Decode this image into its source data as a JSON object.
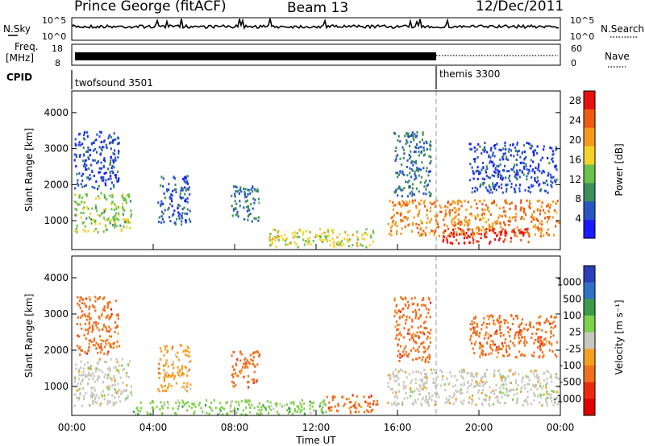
{
  "header": {
    "station": "Prince George (fitACF)",
    "beam": "Beam 13",
    "date": "12/Dec/2011"
  },
  "status_panels": {
    "nsky_label": "N.Sky",
    "nsky_ticks": [
      "10^5",
      "10^0"
    ],
    "nsearch_label": "N.Search",
    "nsearch_ticks": [
      "10^5",
      "10^0"
    ],
    "freq_label_1": "Freq.",
    "freq_label_2": "[MHz]",
    "freq_ticks": [
      "18",
      "8"
    ],
    "nave_label": "Nave",
    "nave_ticks": [
      "60",
      "0"
    ],
    "cpid_label": "CPID",
    "cpid_modes": [
      {
        "name": "twofsound 3501",
        "start": 0,
        "end": 18
      },
      {
        "name": "themis 3300",
        "start": 18,
        "end": 24
      }
    ]
  },
  "chart_data": [
    {
      "type": "heatmap",
      "panel": "power",
      "ylabel": "Slant Range [km]",
      "xlabel": "",
      "xlim": [
        0,
        24
      ],
      "ylim": [
        200,
        4600
      ],
      "yticks": [
        "1000",
        "2000",
        "3000",
        "4000"
      ],
      "colorbar": {
        "label": "Power [dB]",
        "ticks": [
          "4",
          "8",
          "12",
          "16",
          "20",
          "24",
          "28"
        ],
        "range": [
          0,
          30
        ],
        "colors": [
          "#1a1aff",
          "#2a56c4",
          "#3d8f5e",
          "#6cc24a",
          "#f5d22a",
          "#f59a1a",
          "#f05a10",
          "#e81010"
        ]
      },
      "echo_regions": [
        {
          "t0": 0.1,
          "t1": 2.9,
          "r0": 700,
          "r1": 1800,
          "level": 14
        },
        {
          "t0": 0.1,
          "t1": 2.3,
          "r0": 1900,
          "r1": 3500,
          "level": 5
        },
        {
          "t0": 4.2,
          "t1": 5.8,
          "r0": 900,
          "r1": 2300,
          "level": 6
        },
        {
          "t0": 7.8,
          "t1": 9.2,
          "r0": 1000,
          "r1": 2000,
          "level": 8
        },
        {
          "t0": 9.5,
          "t1": 14.8,
          "r0": 300,
          "r1": 800,
          "level": 16
        },
        {
          "t0": 15.5,
          "t1": 23.9,
          "r0": 600,
          "r1": 1600,
          "level": 22
        },
        {
          "t0": 18.2,
          "t1": 22.4,
          "r0": 400,
          "r1": 800,
          "level": 28
        },
        {
          "t0": 15.8,
          "t1": 17.6,
          "r0": 1700,
          "r1": 3500,
          "level": 7
        },
        {
          "t0": 19.5,
          "t1": 23.8,
          "r0": 1800,
          "r1": 3200,
          "level": 5
        }
      ]
    },
    {
      "type": "heatmap",
      "panel": "velocity",
      "ylabel": "Slant Range [km]",
      "xlabel": "Time UT",
      "xlim": [
        0,
        24
      ],
      "ylim": [
        200,
        4600
      ],
      "yticks": [
        "1000",
        "2000",
        "3000",
        "4000"
      ],
      "xticks": [
        "00:00",
        "04:00",
        "08:00",
        "12:00",
        "16:00",
        "20:00",
        "00:00"
      ],
      "colorbar": {
        "label": "Velocity [m s⁻¹]",
        "ticks": [
          "1000",
          "500",
          "100",
          "25",
          "-25",
          "-100",
          "-500",
          "-1000"
        ],
        "colors": [
          "#2a3fb8",
          "#2f72c8",
          "#3c9b4a",
          "#7fd04a",
          "#c8c8c0",
          "#f5a020",
          "#f07020",
          "#ec2a10",
          "#e00000"
        ]
      },
      "echo_regions": [
        {
          "t0": 0.1,
          "t1": 2.9,
          "r0": 500,
          "r1": 1800,
          "level": 0
        },
        {
          "t0": 0.2,
          "t1": 2.3,
          "r0": 1900,
          "r1": 3500,
          "level": -150
        },
        {
          "t0": 4.2,
          "t1": 5.8,
          "r0": 900,
          "r1": 2200,
          "level": -100
        },
        {
          "t0": 7.8,
          "t1": 9.2,
          "r0": 1000,
          "r1": 2000,
          "level": -120
        },
        {
          "t0": 3.0,
          "t1": 12.5,
          "r0": 250,
          "r1": 650,
          "level": 60
        },
        {
          "t0": 12.5,
          "t1": 15.0,
          "r0": 300,
          "r1": 800,
          "level": -200
        },
        {
          "t0": 15.5,
          "t1": 23.9,
          "r0": 500,
          "r1": 1500,
          "level": 0
        },
        {
          "t0": 15.8,
          "t1": 17.6,
          "r0": 1700,
          "r1": 3500,
          "level": -300
        },
        {
          "t0": 19.5,
          "t1": 23.8,
          "r0": 1800,
          "r1": 3000,
          "level": -200
        }
      ]
    }
  ]
}
